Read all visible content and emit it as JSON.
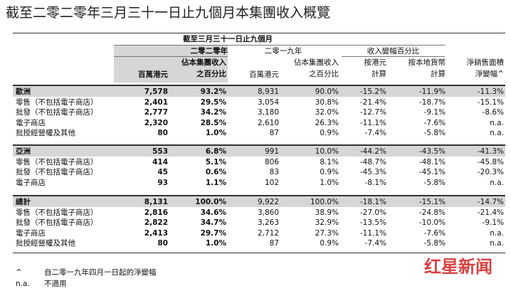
{
  "title": "截至二零二零年三月三十一日止九個月本集團收入概覽",
  "header": {
    "period": "截至三月三十一日止九個月",
    "year_2020": "二零二零年",
    "year_2019": "二零一九年",
    "change": "收入變幅百分比",
    "area_change": [
      "淨銷售面積",
      "淨變幅^"
    ],
    "columns": [
      [
        "百萬港元"
      ],
      [
        "佔本集團收入",
        "之百分比"
      ],
      [
        "百萬港元"
      ],
      [
        "佔本集團收入",
        "之百分比"
      ],
      [
        "按港元",
        "計算"
      ],
      [
        "按本地貨幣",
        "計算"
      ]
    ]
  },
  "table": {
    "sections": [
      {
        "rows": [
          [
            "歐洲",
            "7,578",
            "93.2%",
            "8,931",
            "90.0%",
            "-15.2%",
            "-11.9%",
            "-11.3%"
          ],
          [
            "零售（不包括電子商店）",
            "2,401",
            "29.5%",
            "3,054",
            "30.8%",
            "-21.4%",
            "-18.7%",
            "-15.1%"
          ],
          [
            "批發（不包括電子商店）",
            "2,777",
            "34.2%",
            "3,180",
            "32.0%",
            "-12.7%",
            "-9.1%",
            "-8.6%"
          ],
          [
            "電子商店",
            "2,320",
            "28.5%",
            "2,610",
            "26.3%",
            "-11.1%",
            "-7.6%",
            "n.a."
          ],
          [
            "批授經營權及其他",
            "80",
            "1.0%",
            "87",
            "0.9%",
            "-7.4%",
            "-5.8%",
            "n.a."
          ]
        ]
      },
      {
        "rows": [
          [
            "亞洲",
            "553",
            "6.8%",
            "991",
            "10.0%",
            "-44.2%",
            "-43.5%",
            "-41.3%"
          ],
          [
            "零售（不包括電子商店）",
            "414",
            "5.1%",
            "806",
            "8.1%",
            "-48.7%",
            "-48.1%",
            "-45.8%"
          ],
          [
            "批發（不包括電子商店）",
            "45",
            "0.6%",
            "83",
            "0.9%",
            "-45.3%",
            "-45.1%",
            "-20.3%"
          ],
          [
            "電子商店",
            "93",
            "1.1%",
            "102",
            "1.0%",
            "-8.1%",
            "-5.8%",
            "n.a."
          ]
        ]
      },
      {
        "rows": [
          [
            "總計",
            "8,131",
            "100.0%",
            "9,922",
            "100.0%",
            "-18.1%",
            "-15.1%",
            "-14.7%"
          ],
          [
            "零售（不包括電子商店）",
            "2,816",
            "34.6%",
            "3,860",
            "38.9%",
            "-27.0%",
            "-24.8%",
            "-21.4%"
          ],
          [
            "批發（不包括電子商店）",
            "2,822",
            "34.7%",
            "3,263",
            "32.9%",
            "-13.5%",
            "-10.0%",
            "-9.1%"
          ],
          [
            "電子商店",
            "2,413",
            "29.7%",
            "2,712",
            "27.3%",
            "-11.1%",
            "-7.6%",
            "n.a."
          ],
          [
            "批授經營權及其他",
            "80",
            "1.0%",
            "87",
            "0.9%",
            "-7.4%",
            "-5.8%",
            "n.a."
          ]
        ]
      }
    ]
  },
  "footnotes": [
    [
      "^",
      "自二零一九年四月一日起的淨變幅"
    ],
    [
      "n.a.",
      "不適用"
    ]
  ],
  "watermark": "红星新闻"
}
